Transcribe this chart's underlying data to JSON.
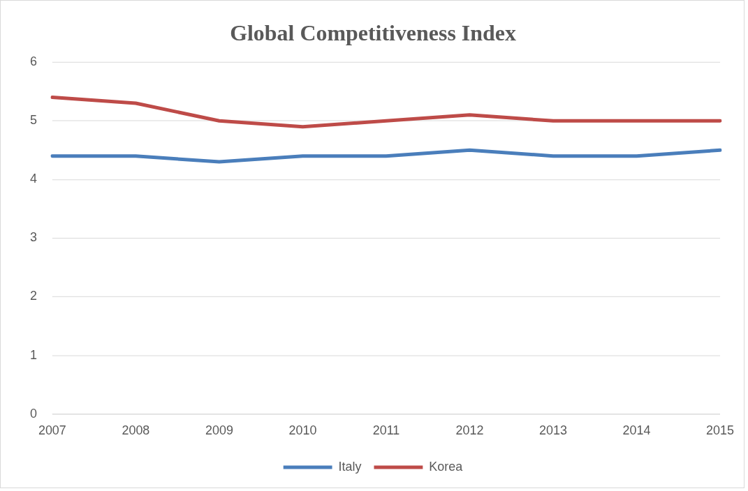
{
  "chart_data": {
    "type": "line",
    "title": "Global Competitiveness Index",
    "categories": [
      "2007",
      "2008",
      "2009",
      "2010",
      "2011",
      "2012",
      "2013",
      "2014",
      "2015"
    ],
    "series": [
      {
        "name": "Italy",
        "color": "#4a7ebb",
        "values": [
          4.4,
          4.4,
          4.3,
          4.4,
          4.4,
          4.5,
          4.4,
          4.4,
          4.5
        ]
      },
      {
        "name": "Korea",
        "color": "#be4b48",
        "values": [
          5.4,
          5.3,
          5.0,
          4.9,
          5.0,
          5.1,
          5.0,
          5.0,
          5.0
        ]
      }
    ],
    "ylim": [
      0,
      6
    ],
    "yticks": [
      0,
      1,
      2,
      3,
      4,
      5,
      6
    ],
    "grid": "y",
    "legend": "bottom",
    "marker": "none",
    "line_style": "solid"
  }
}
